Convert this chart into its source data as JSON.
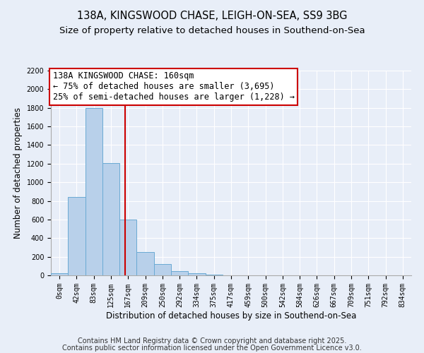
{
  "title1": "138A, KINGSWOOD CHASE, LEIGH-ON-SEA, SS9 3BG",
  "title2": "Size of property relative to detached houses in Southend-on-Sea",
  "xlabel": "Distribution of detached houses by size in Southend-on-Sea",
  "ylabel": "Number of detached properties",
  "bar_values": [
    20,
    840,
    1800,
    1210,
    600,
    250,
    120,
    45,
    20,
    5,
    2,
    0,
    0,
    0,
    0,
    0,
    0,
    0,
    0,
    0,
    0
  ],
  "bin_labels": [
    "0sqm",
    "42sqm",
    "83sqm",
    "125sqm",
    "167sqm",
    "209sqm",
    "250sqm",
    "292sqm",
    "334sqm",
    "375sqm",
    "417sqm",
    "459sqm",
    "500sqm",
    "542sqm",
    "584sqm",
    "626sqm",
    "667sqm",
    "709sqm",
    "751sqm",
    "792sqm",
    "834sqm"
  ],
  "bar_color": "#b8d0ea",
  "bar_edge_color": "#6aaad4",
  "vline_x": 3.83,
  "vline_color": "#cc0000",
  "annotation_text": "138A KINGSWOOD CHASE: 160sqm\n← 75% of detached houses are smaller (3,695)\n25% of semi-detached houses are larger (1,228) →",
  "annotation_box_color": "#ffffff",
  "annotation_box_edge_color": "#cc0000",
  "ylim": [
    0,
    2200
  ],
  "yticks": [
    0,
    200,
    400,
    600,
    800,
    1000,
    1200,
    1400,
    1600,
    1800,
    2000,
    2200
  ],
  "footer1": "Contains HM Land Registry data © Crown copyright and database right 2025.",
  "footer2": "Contains public sector information licensed under the Open Government Licence v3.0.",
  "bg_color": "#e8eef8",
  "grid_color": "#ffffff",
  "title_fontsize": 10.5,
  "subtitle_fontsize": 9.5,
  "annotation_fontsize": 8.5,
  "tick_fontsize": 7,
  "footer_fontsize": 7
}
